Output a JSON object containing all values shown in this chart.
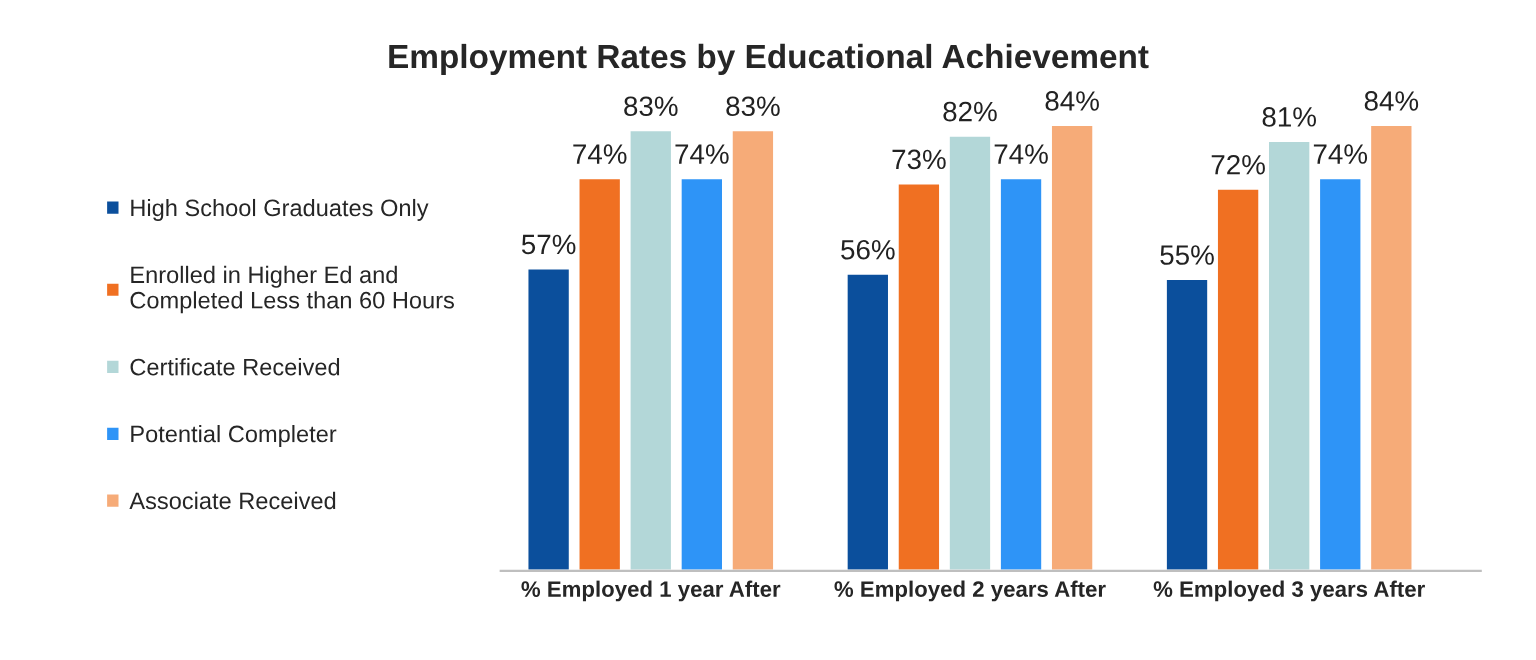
{
  "chart_data": {
    "type": "bar",
    "title": "Employment Rates by Educational Achievement",
    "categories": [
      "% Employed 1 year After",
      "% Employed 2 years After",
      "% Employed 3 years After"
    ],
    "series": [
      {
        "name": "High School Graduates Only",
        "color": "#0b4f9c",
        "values": [
          57,
          56,
          55
        ],
        "value_labels": [
          "57%",
          "56%",
          "55%"
        ]
      },
      {
        "name": "Enrolled in Higher Ed and\nCompleted Less than 60 Hours",
        "color": "#f07022",
        "values": [
          74,
          73,
          72
        ],
        "value_labels": [
          "74%",
          "73%",
          "72%"
        ]
      },
      {
        "name": "Certificate Received",
        "color": "#b3d7d8",
        "values": [
          83,
          82,
          81
        ],
        "value_labels": [
          "83%",
          "82%",
          "81%"
        ]
      },
      {
        "name": "Potential Completer",
        "color": "#2e94f7",
        "values": [
          74,
          74,
          74
        ],
        "value_labels": [
          "74%",
          "74%",
          "74%"
        ]
      },
      {
        "name": "Associate Received",
        "color": "#f6ab78",
        "values": [
          83,
          84,
          84
        ],
        "value_labels": [
          "83%",
          "84%",
          "84%"
        ]
      }
    ],
    "tick_labels": "x",
    "legend": "left",
    "grid": false
  }
}
